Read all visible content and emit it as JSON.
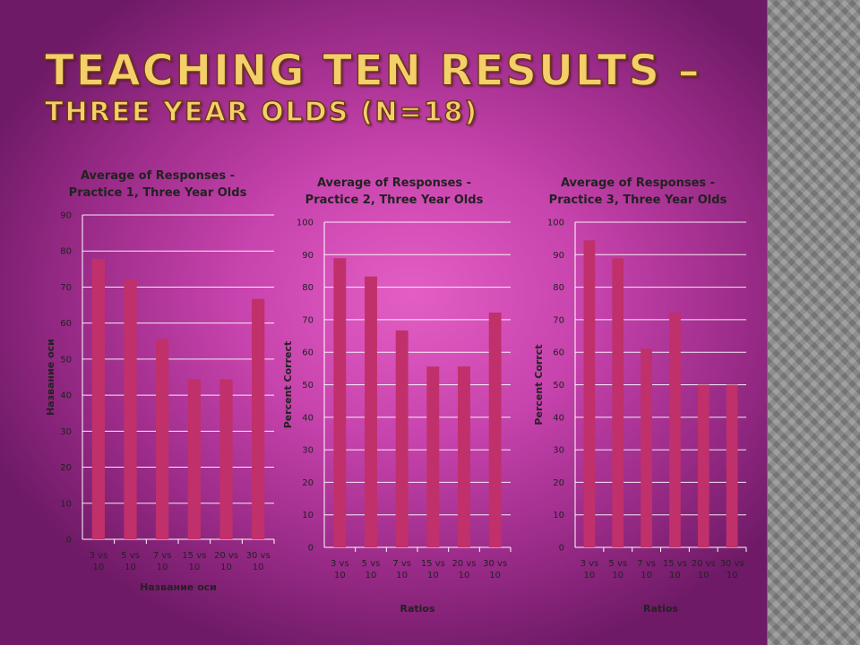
{
  "slide": {
    "title": "Teaching Ten Results –",
    "subtitle": "Three Year Olds (N=18)"
  },
  "colors": {
    "bar": "#c0306a",
    "gridline": "#ffffff",
    "title": "#f4cf6a"
  },
  "chart_data": [
    {
      "type": "bar",
      "title_lines": [
        "Average of Responses -",
        "Practice 1, Three Year Olds"
      ],
      "categories": [
        [
          "3 vs",
          "10"
        ],
        [
          "5 vs",
          "10"
        ],
        [
          "7 vs",
          "10"
        ],
        [
          "15 vs",
          "10"
        ],
        [
          "20 vs",
          "10"
        ],
        [
          "30 vs",
          "10"
        ]
      ],
      "values": [
        77.8,
        72.2,
        55.6,
        44.4,
        44.4,
        66.7
      ],
      "ylim": [
        0,
        90
      ],
      "yticks": [
        0,
        10,
        20,
        30,
        40,
        50,
        60,
        70,
        80,
        90
      ],
      "ylabel": "Название оси",
      "xlabel": "Название оси",
      "grid": true
    },
    {
      "type": "bar",
      "title_lines": [
        "Average of Responses -",
        "Practice 2, Three Year Olds"
      ],
      "categories": [
        [
          "3 vs",
          "10"
        ],
        [
          "5 vs",
          "10"
        ],
        [
          "7 vs",
          "10"
        ],
        [
          "15 vs",
          "10"
        ],
        [
          "20 vs",
          "10"
        ],
        [
          "30 vs",
          "10"
        ]
      ],
      "values": [
        88.9,
        83.3,
        66.7,
        55.6,
        55.6,
        72.2
      ],
      "ylim": [
        0,
        100
      ],
      "yticks": [
        0,
        10,
        20,
        30,
        40,
        50,
        60,
        70,
        80,
        90,
        100
      ],
      "ylabel": "Percent Correct",
      "xlabel": "Ratios",
      "grid": true
    },
    {
      "type": "bar",
      "title_lines": [
        "Average of Responses -",
        "Practice 3, Three Year Olds"
      ],
      "categories": [
        [
          "3 vs",
          "10"
        ],
        [
          "5 vs",
          "10"
        ],
        [
          "7 vs",
          "10"
        ],
        [
          "15 vs",
          "10"
        ],
        [
          "20 vs",
          "10"
        ],
        [
          "30 vs",
          "10"
        ]
      ],
      "values": [
        94.4,
        88.9,
        61.1,
        72.2,
        50.0,
        50.0
      ],
      "ylim": [
        0,
        100
      ],
      "yticks": [
        0,
        10,
        20,
        30,
        40,
        50,
        60,
        70,
        80,
        90,
        100
      ],
      "ylabel": "Percent Corrct",
      "xlabel": "Ratios",
      "grid": true
    }
  ]
}
